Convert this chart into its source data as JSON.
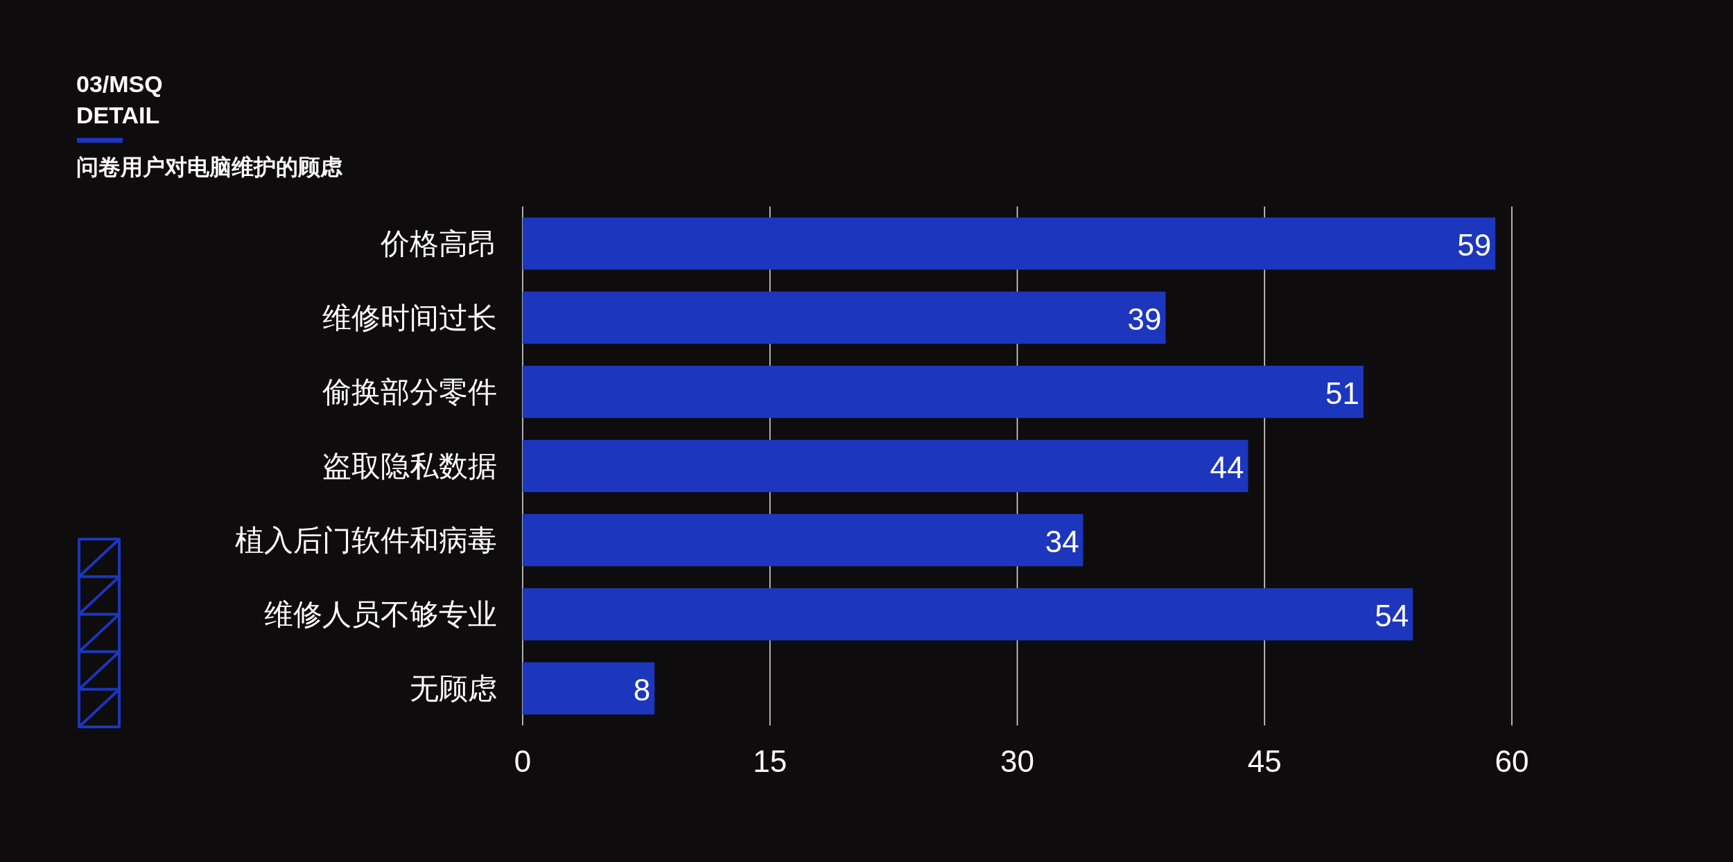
{
  "chart_data": {
    "type": "bar",
    "orientation": "horizontal",
    "title": "03/MSQ\nDETAIL",
    "subtitle": "问卷用户对电脑维护的顾虑",
    "categories": [
      "价格高昂",
      "维修时间过长",
      "偷换部分零件",
      "盗取隐私数据",
      "植入后门软件和病毒",
      "维修人员不够专业",
      "无顾虑"
    ],
    "values": [
      59,
      39,
      51,
      44,
      34,
      54,
      8
    ],
    "color": "#1c36bd",
    "xlim": [
      0,
      60
    ],
    "xticks": [
      0,
      15,
      30,
      45,
      60
    ],
    "grid": "x",
    "data_labels": true
  }
}
